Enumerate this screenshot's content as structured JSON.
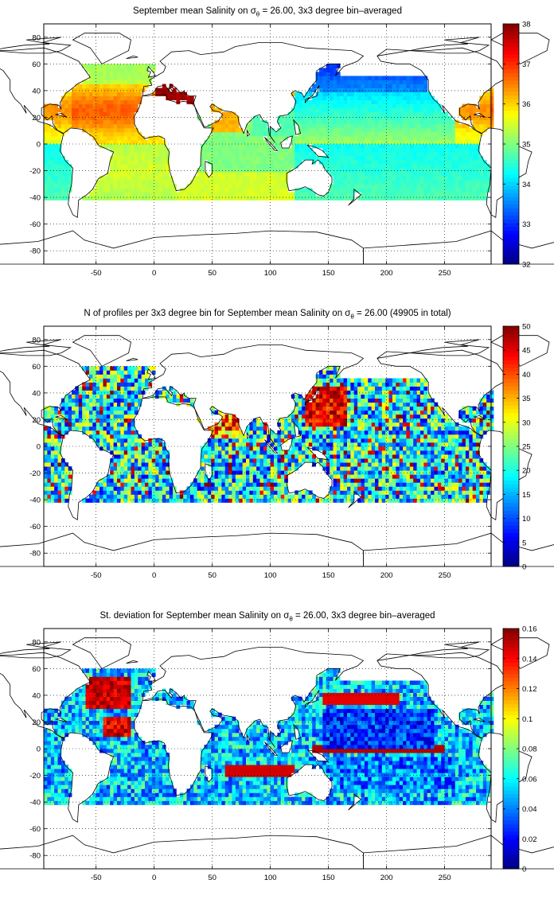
{
  "panels": [
    {
      "title_pre": "September mean Salinity on σ",
      "title_sub": "θ",
      "title_post": " = 26.00, 3x3 degree bin–averaged",
      "colorbar": {
        "min": 32,
        "max": 38,
        "ticks": [
          "38",
          "37",
          "36",
          "35",
          "34",
          "33",
          "32"
        ]
      },
      "field": "salinity"
    },
    {
      "title_pre": "N of profiles per 3x3 degree bin for September mean Salinity on σ",
      "title_sub": "θ",
      "title_post": " = 26.00 (49905 in total)",
      "colorbar": {
        "min": 0,
        "max": 50,
        "ticks": [
          "50",
          "45",
          "40",
          "35",
          "30",
          "25",
          "20",
          "15",
          "10",
          "5",
          "0"
        ]
      },
      "field": "count"
    },
    {
      "title_pre": "St. deviation for September mean Salinity on σ",
      "title_sub": "θ",
      "title_post": " = 26.00, 3x3 degree bin–averaged",
      "colorbar": {
        "min": 0,
        "max": 0.16,
        "ticks": [
          "0.16",
          "0.14",
          "0.12",
          "0.1",
          "0.08",
          "0.06",
          "0.04",
          "0.02",
          "0"
        ]
      },
      "field": "stdev"
    }
  ],
  "chart_data": {
    "type": "heatmap",
    "xlim": [
      -95,
      290
    ],
    "ylim": [
      -90,
      90
    ],
    "xticks": [
      "-50",
      "0",
      "50",
      "100",
      "150",
      "200",
      "250"
    ],
    "xtick_values": [
      -50,
      0,
      50,
      100,
      150,
      200,
      250
    ],
    "yticks": [
      "80",
      "60",
      "40",
      "20",
      "0",
      "-20",
      "-40",
      "-60",
      "-80"
    ],
    "ytick_values": [
      80,
      60,
      40,
      20,
      0,
      -20,
      -40,
      -60,
      -80
    ],
    "grid": "dotted",
    "colormap": "jet",
    "bin_size_deg": 3
  }
}
